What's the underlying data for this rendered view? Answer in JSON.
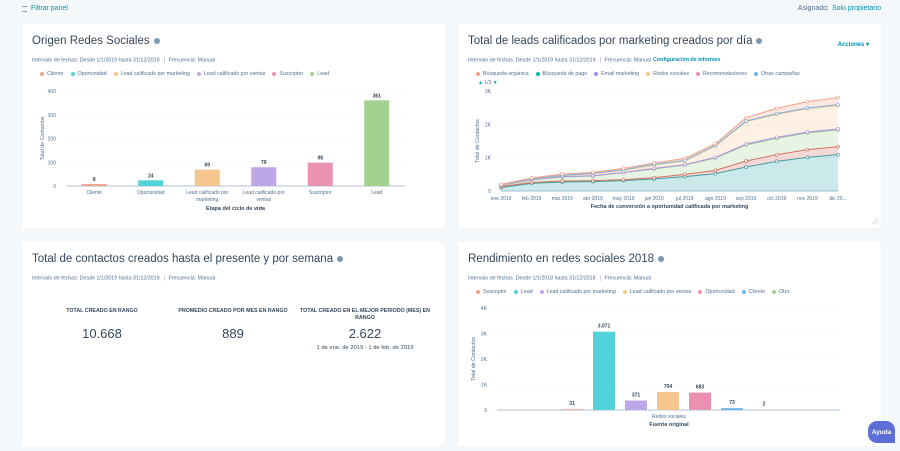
{
  "topbar": {
    "filter_label": "Filtrar panel",
    "assigned_label": "Asignado:",
    "assigned_value": "Solo propietario"
  },
  "colors": {
    "accent": "#0091ae",
    "background": "#f5f8fa"
  },
  "cards": [
    {
      "title": "Origen Redes Sociales",
      "meta_range": "Intervalo de fechas: Desde 1/1/2019 hasta 31/12/2019",
      "meta_freq": "Frecuencia: Manual"
    },
    {
      "title": "Total de leads calificados por marketing creados por día",
      "meta_range": "Intervalo de fechas: Desde 1/1/2019 hasta 31/12/2019",
      "meta_freq": "Frecuencia: Manual",
      "meta_link": "Configuración de informes",
      "actions": "Acciones ▾",
      "pager": "1/3"
    },
    {
      "title": "Total de contactos creados hasta el presente y por semana",
      "meta_range": "Intervalo de fechas: Desde 1/1/2019 hasta 31/12/2019",
      "meta_freq": "Frecuencia: Manual",
      "kpis": [
        {
          "label": "TOTAL CREADO EN RANGO",
          "value": "10.668"
        },
        {
          "label": "PROMEDIO CREADO POR MES EN RANGO",
          "value": "889"
        },
        {
          "label": "TOTAL CREADO EN EL MEJOR PERIODO (MES) EN RANGO",
          "value": "2.622",
          "sub": "1 de ene. de 2019 - 1 de feb. de 2019"
        }
      ]
    },
    {
      "title": "Rendimiento en redes sociales 2018",
      "meta_range": "Intervalo de fechas: Desde 1/1/2018 hasta 31/12/2018",
      "meta_freq": "Frecuencia: Manual"
    }
  ],
  "help_label": "Ayuda",
  "chart_data": [
    {
      "type": "bar",
      "categories": [
        "Cliente",
        "Oportunidad",
        "Lead calificado por marketing",
        "Lead calificado por ventas",
        "Suscriptor",
        "Lead"
      ],
      "values": [
        8,
        24,
        69,
        79,
        98,
        361
      ],
      "colors": [
        "#f2a188",
        "#51d3d9",
        "#f5c78e",
        "#bda7e8",
        "#ea90b1",
        "#a2d28f"
      ],
      "legend": [
        "Cliente",
        "Oportunidad",
        "Lead calificado por marketing",
        "Lead calificado por ventas",
        "Suscriptor",
        "Lead"
      ],
      "xlabel": "Etapa del ciclo de vida",
      "ylabel": "Total de Contactos",
      "ylim": [
        0,
        400
      ],
      "yticks": [
        "0",
        "100",
        "200",
        "300",
        "400"
      ],
      "grid": true,
      "legend_position": "top"
    },
    {
      "type": "area",
      "stacked": true,
      "categories": [
        "ene 2019",
        "feb 2019",
        "mar 2019",
        "abr 2019",
        "may 2019",
        "jun 2019",
        "jul 2019",
        "ago 2019",
        "sep 2019",
        "oct 2019",
        "nov 2019",
        "dic 20..."
      ],
      "legend": [
        {
          "name": "Búsqueda orgánica",
          "color": "#f2a188"
        },
        {
          "name": "Búsqueda de pago",
          "color": "#00bda5"
        },
        {
          "name": "Email marketing",
          "color": "#a78bf0"
        },
        {
          "name": "Redes sociales",
          "color": "#f5c78e"
        },
        {
          "name": "Recomendaciones",
          "color": "#ea90b1"
        },
        {
          "name": "Otras campañas",
          "color": "#6eb6e8"
        }
      ],
      "series": [
        {
          "name": "Búsqueda de pago",
          "color": "#2fa6ad",
          "values": [
            100,
            230,
            270,
            280,
            310,
            360,
            430,
            520,
            720,
            890,
            1010,
            1090
          ]
        },
        {
          "name": "Recomendaciones",
          "color": "#d9675c",
          "values": [
            30,
            30,
            30,
            30,
            30,
            40,
            70,
            100,
            180,
            200,
            230,
            240
          ]
        },
        {
          "color": "#a2d28f",
          "values": [
            30,
            70,
            120,
            140,
            210,
            260,
            280,
            370,
            480,
            490,
            500,
            500
          ]
        },
        {
          "name": "Email marketing",
          "color": "#a78bf0",
          "values": [
            10,
            10,
            10,
            10,
            10,
            20,
            10,
            20,
            30,
            30,
            30,
            30
          ]
        },
        {
          "name": "Redes sociales",
          "color": "#f5c78e",
          "values": [
            10,
            20,
            30,
            60,
            60,
            100,
            110,
            340,
            670,
            690,
            700,
            700
          ]
        },
        {
          "name": "Otras campañas",
          "color": "#6eb6e8",
          "values": [
            10,
            10,
            10,
            10,
            20,
            20,
            20,
            20,
            20,
            20,
            20,
            30
          ]
        },
        {
          "name": "Búsqueda orgánica",
          "color": "#f2a188",
          "values": [
            10,
            20,
            40,
            30,
            40,
            40,
            60,
            50,
            100,
            160,
            190,
            210
          ]
        }
      ],
      "xlabel": "Fecha de conversión a oportunidad calificada por marketing",
      "ylabel": "Total de Contactos",
      "ylim": [
        0,
        3000
      ],
      "yticks": [
        "0",
        "1K",
        "2K",
        "3K"
      ],
      "grid": true,
      "legend_position": "top"
    },
    {
      "type": "bar",
      "categories": [
        "Redes sociales"
      ],
      "series": [
        {
          "name": "Suscriptor",
          "value": 31,
          "color": "#f2a188"
        },
        {
          "name": "Lead",
          "value": 3071,
          "label": "3.071",
          "color": "#51d3d9"
        },
        {
          "name": "Lead calificado por marketing",
          "value": 371,
          "color": "#bda7e8"
        },
        {
          "name": "Lead calificado por ventas",
          "value": 704,
          "color": "#f5c78e"
        },
        {
          "name": "Oportunidad",
          "value": 683,
          "color": "#ea90b1"
        },
        {
          "name": "Cliente",
          "value": 73,
          "color": "#6eb6e8"
        },
        {
          "name": "Otro",
          "value": 2,
          "color": "#a2d28f"
        }
      ],
      "xlabel": "Fuente original",
      "ylabel": "Total de Contactos",
      "ylim": [
        0,
        4000
      ],
      "yticks": [
        "0",
        "1K",
        "2K",
        "3K",
        "4K"
      ],
      "grid": true,
      "legend_position": "top"
    }
  ]
}
